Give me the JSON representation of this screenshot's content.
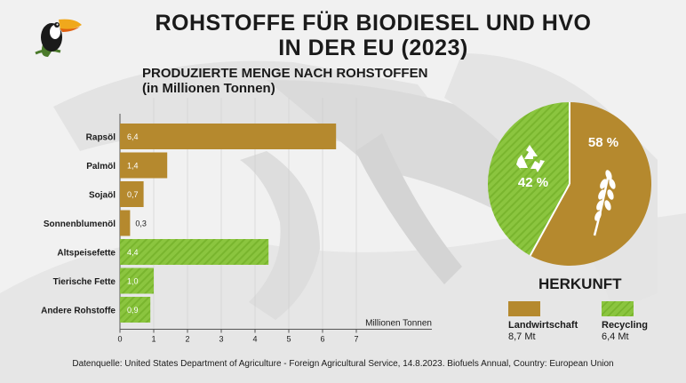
{
  "title_lines": [
    "ROHSTOFFE FÜR BIODIESEL UND HVO",
    "IN DER EU (2023)"
  ],
  "subtitle_lines": [
    "PRODUZIERTE MENGE NACH ROHSTOFFEN",
    "(in Millionen Tonnen)"
  ],
  "colors": {
    "landwirtschaft": "#b5892e",
    "recycling": "#8bc53f",
    "recycling_stripe": "#79b52e"
  },
  "chart_data": [
    {
      "type": "bar",
      "orientation": "horizontal",
      "title": "PRODUZIERTE MENGE NACH ROHSTOFFEN (in Millionen Tonnen)",
      "xlabel": "Millionen Tonnen",
      "xlim": [
        0,
        7
      ],
      "xticks": [
        "0",
        "1",
        "2",
        "3",
        "4",
        "5",
        "6",
        "7"
      ],
      "categories": [
        "Rapsöl",
        "Palmöl",
        "Sojaöl",
        "Sonnenblumenöl",
        "Altspeisefette",
        "Tierische Fette",
        "Andere Rohstoffe"
      ],
      "values": [
        6.4,
        1.4,
        0.7,
        0.3,
        4.4,
        1.0,
        0.9
      ],
      "value_labels": [
        "6,4",
        "1,4",
        "0,7",
        "0,3",
        "4,4",
        "1,0",
        "0,9"
      ],
      "groups": [
        "landwirtschaft",
        "landwirtschaft",
        "landwirtschaft",
        "landwirtschaft",
        "recycling",
        "recycling",
        "recycling"
      ]
    },
    {
      "type": "pie",
      "title": "HERKUNFT",
      "labels": [
        "Landwirtschaft",
        "Recycling"
      ],
      "values": [
        58,
        42
      ],
      "value_labels": [
        "58 %",
        "42 %"
      ],
      "amounts": [
        "8,7 Mt",
        "6,4 Mt"
      ],
      "icons": [
        "wheat-icon",
        "recycle-icon"
      ]
    }
  ],
  "source": "Datenquelle: United States Department of Agriculture - Foreign Agricultural Service, 14.8.2023. Biofuels Annual, Country: European Union"
}
